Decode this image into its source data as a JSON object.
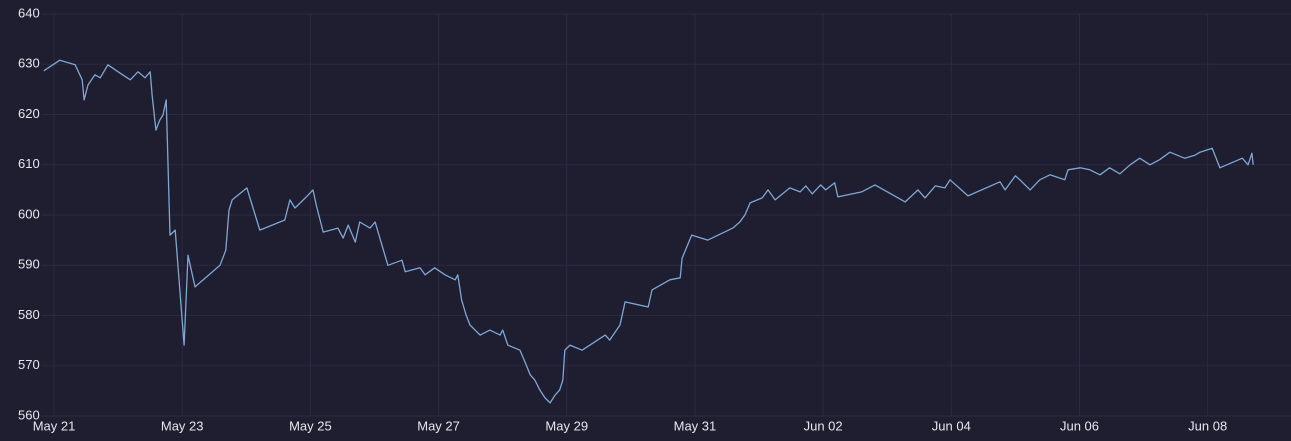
{
  "chart_data": {
    "type": "line",
    "x": [
      -0.16,
      0.09,
      0.33,
      0.44,
      0.47,
      0.53,
      0.64,
      0.72,
      0.84,
      1.0,
      1.19,
      1.31,
      1.42,
      1.5,
      1.53,
      1.59,
      1.65,
      1.7,
      1.75,
      1.81,
      1.89,
      2.03,
      2.09,
      2.2,
      2.59,
      2.68,
      2.73,
      2.78,
      3.01,
      3.21,
      3.6,
      3.68,
      3.76,
      3.92,
      4.04,
      4.09,
      4.2,
      4.43,
      4.51,
      4.59,
      4.7,
      4.77,
      4.93,
      5.01,
      5.21,
      5.43,
      5.48,
      5.71,
      5.79,
      5.94,
      6.1,
      6.26,
      6.3,
      6.36,
      6.43,
      6.49,
      6.57,
      6.65,
      6.8,
      6.96,
      7.0,
      7.08,
      7.27,
      7.35,
      7.43,
      7.5,
      7.58,
      7.66,
      7.74,
      7.82,
      7.89,
      7.94,
      7.97,
      8.05,
      8.24,
      8.6,
      8.67,
      8.83,
      8.91,
      9.27,
      9.33,
      9.61,
      9.77,
      9.8,
      9.95,
      10.2,
      10.59,
      10.7,
      10.78,
      10.86,
      11.05,
      11.14,
      11.25,
      11.48,
      11.64,
      11.73,
      11.83,
      11.96,
      12.04,
      12.18,
      12.23,
      12.6,
      12.81,
      13.28,
      13.48,
      13.59,
      13.75,
      13.9,
      13.98,
      14.26,
      14.76,
      14.84,
      15.0,
      15.07,
      15.23,
      15.38,
      15.54,
      15.77,
      15.82,
      16.01,
      16.16,
      16.32,
      16.47,
      16.63,
      16.79,
      16.94,
      17.1,
      17.25,
      17.41,
      17.64,
      17.8,
      17.88,
      18.07,
      18.19,
      18.54,
      18.63,
      18.69,
      18.71
    ],
    "series": [
      {
        "color": "#7fa7d3",
        "values": [
          628.7,
          630.8,
          629.9,
          626.9,
          622.9,
          625.9,
          627.9,
          627.3,
          629.9,
          628.5,
          626.9,
          628.5,
          627.3,
          628.5,
          623.9,
          616.9,
          618.9,
          619.9,
          622.9,
          596.0,
          597.0,
          574.1,
          592.0,
          585.7,
          590.0,
          593.0,
          601.0,
          603.0,
          605.4,
          597.0,
          599.0,
          603.0,
          601.4,
          603.4,
          605.0,
          602.0,
          596.6,
          597.4,
          595.4,
          598.0,
          594.6,
          598.6,
          597.4,
          598.6,
          590.0,
          591.0,
          588.7,
          589.5,
          588.1,
          589.5,
          588.1,
          587.1,
          588.1,
          583.1,
          580.1,
          578.1,
          577.1,
          576.1,
          577.1,
          576.1,
          577.1,
          574.1,
          573.1,
          570.7,
          568.2,
          567.2,
          565.2,
          563.6,
          562.6,
          564.2,
          565.2,
          567.2,
          573.1,
          574.1,
          573.1,
          576.1,
          575.1,
          578.1,
          582.7,
          581.7,
          585.1,
          587.1,
          587.5,
          591.4,
          596.0,
          595.0,
          597.4,
          598.6,
          600.0,
          602.4,
          603.4,
          605.0,
          603.0,
          605.4,
          604.6,
          605.8,
          604.2,
          606.0,
          605.0,
          606.4,
          603.6,
          604.6,
          606.0,
          602.6,
          605.0,
          603.4,
          605.8,
          605.4,
          607.0,
          603.8,
          606.6,
          605.0,
          607.8,
          607.0,
          605.0,
          607.0,
          608.0,
          607.0,
          609.0,
          609.4,
          609.0,
          608.0,
          609.4,
          608.2,
          610.0,
          611.3,
          610.0,
          611.0,
          612.5,
          611.3,
          611.9,
          612.5,
          613.3,
          609.4,
          611.3,
          610.0,
          612.3,
          610.0
        ]
      }
    ],
    "xlim": [
      -0.2,
      19.3
    ],
    "xticks": [
      {
        "value": 0,
        "label": "May 21"
      },
      {
        "value": 2,
        "label": "May 23"
      },
      {
        "value": 4,
        "label": "May 25"
      },
      {
        "value": 6,
        "label": "May 27"
      },
      {
        "value": 8,
        "label": "May 29"
      },
      {
        "value": 10,
        "label": "May 31"
      },
      {
        "value": 12,
        "label": "Jun 02"
      },
      {
        "value": 14,
        "label": "Jun 04"
      },
      {
        "value": 16,
        "label": "Jun 06"
      },
      {
        "value": 18,
        "label": "Jun 08"
      }
    ],
    "ylim": [
      560,
      640
    ],
    "yticks": [
      560,
      570,
      580,
      590,
      600,
      610,
      620,
      630,
      640
    ],
    "grid": true
  }
}
